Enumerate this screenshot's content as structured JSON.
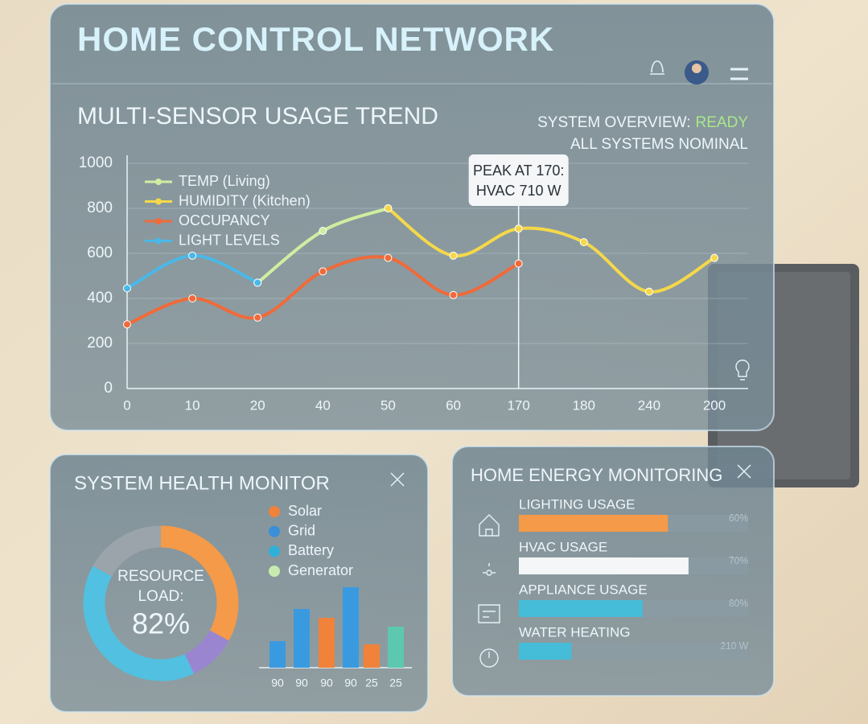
{
  "header": {
    "title": "HOME CONTROL NETWORK"
  },
  "status": {
    "label": "SYSTEM OVERVIEW:",
    "state": "READY",
    "note": "ALL SYSTEMS NOMINAL"
  },
  "panels": {
    "health_title": "SYSTEM HEALTH MONITOR",
    "energy_title": "HOME ENERGY MONITORING"
  },
  "health_legend": [
    {
      "name": "Solar",
      "color": "#f0823a"
    },
    {
      "name": "Grid",
      "color": "#3a8fd8"
    },
    {
      "name": "Battery",
      "color": "#2fb0d8"
    },
    {
      "name": "Generator",
      "color": "#c8ecb0"
    }
  ],
  "chart_data": [
    {
      "type": "line",
      "title": "MULTI-SENSOR USAGE TREND",
      "categories": [
        "0",
        "10",
        "20",
        "40",
        "50",
        "60",
        "170",
        "180",
        "240",
        "200"
      ],
      "series": [
        {
          "name": "TEMP (Living)",
          "color": "#cfeea0",
          "values": [
            null,
            null,
            470,
            700,
            800,
            null,
            null,
            null,
            null,
            null
          ]
        },
        {
          "name": "HUMIDITY (Kitchen)",
          "color": "#f5d84a",
          "values": [
            null,
            null,
            null,
            null,
            800,
            590,
            710,
            650,
            430,
            580
          ]
        },
        {
          "name": "OCCUPANCY",
          "color": "#f06a3a",
          "values": [
            285,
            400,
            315,
            520,
            580,
            415,
            555,
            null,
            null,
            null
          ]
        },
        {
          "name": "LIGHT LEVELS",
          "color": "#4ab8e8",
          "values": [
            445,
            590,
            470,
            null,
            null,
            null,
            null,
            null,
            null,
            null
          ]
        }
      ],
      "ylim": [
        0,
        1000
      ],
      "yticks": [
        0,
        200,
        400,
        600,
        800,
        1000
      ],
      "grid": true,
      "annotation": [
        "PEAK AT 170:",
        "HVAC 710 W"
      ]
    },
    {
      "type": "pie",
      "values": [
        33,
        10,
        40,
        17
      ],
      "colors": [
        "#f59a48",
        "#9a86d0",
        "#52c0e0",
        "#9aa4aa"
      ],
      "center_text": [
        "RESOURCE",
        "LOAD:",
        "82%"
      ]
    },
    {
      "type": "bar",
      "categories": [
        "90",
        "90",
        "90",
        "90",
        "25",
        "25"
      ],
      "values": [
        33,
        73,
        62,
        100,
        29,
        51
      ],
      "colors": [
        "#3a9ae0",
        "#3a9ae0",
        "#f0823a",
        "#3a9ae0",
        "#f0823a",
        "#5cc8b0"
      ]
    },
    {
      "type": "hbar",
      "categories": [
        "LIGHTING USAGE",
        "HVAC USAGE",
        "APPLIANCE USAGE",
        "WATER HEATING"
      ],
      "values": [
        65,
        74,
        54,
        23
      ],
      "readouts": [
        "60%",
        "70%",
        "80%",
        "210 W"
      ],
      "colors": [
        "#f59a48",
        "#f4f6f8",
        "#45bcd8",
        "#45bcd8"
      ],
      "xlim": [
        0,
        100
      ]
    }
  ]
}
